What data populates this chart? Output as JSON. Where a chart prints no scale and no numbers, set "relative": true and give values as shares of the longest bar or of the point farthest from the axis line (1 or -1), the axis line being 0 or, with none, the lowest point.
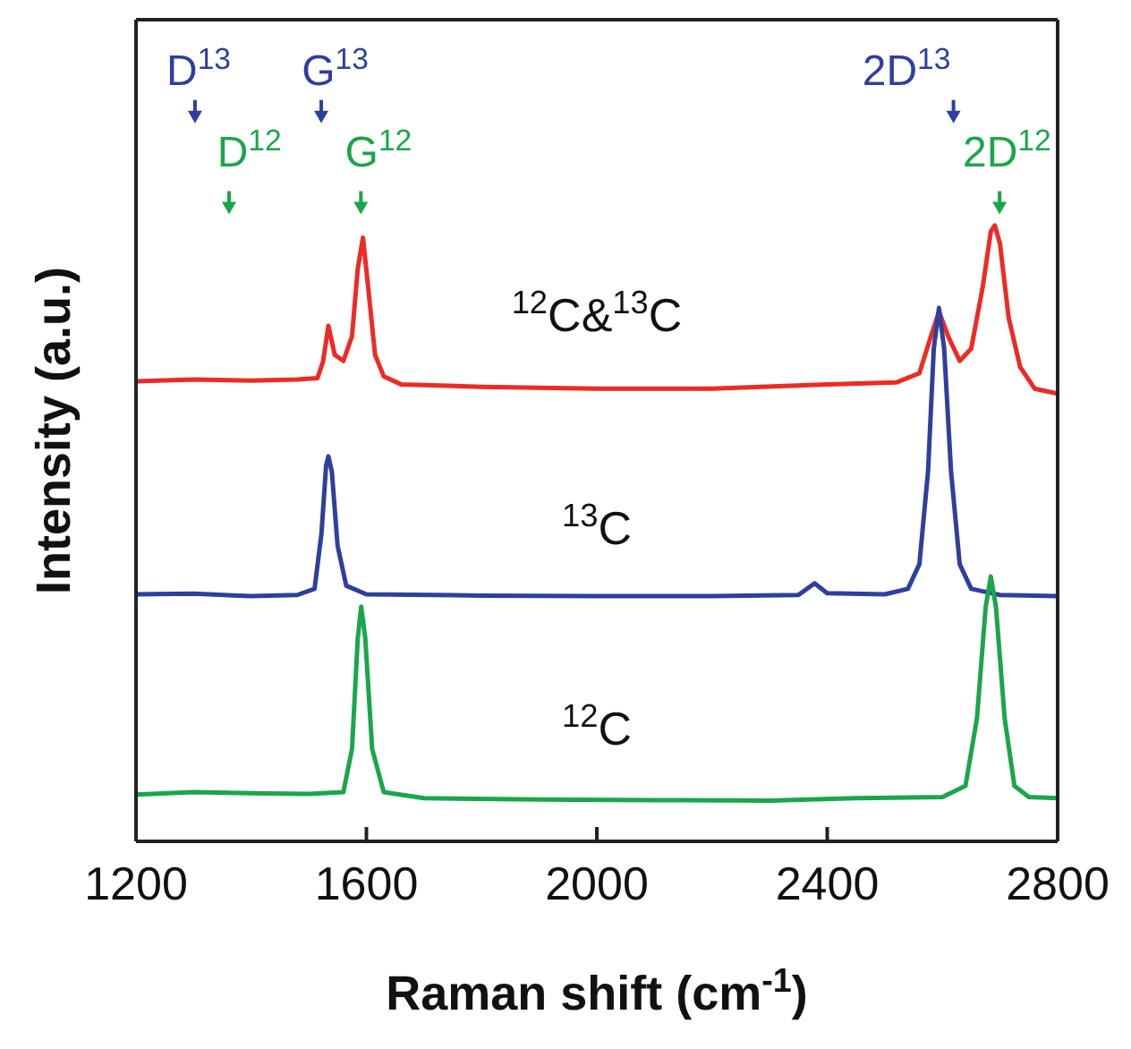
{
  "chart_data": {
    "type": "line",
    "relative": true,
    "xlabel": "Raman shift (cm$^{-1}$)",
    "ylabel": "Intensity (a.u.)",
    "xlim": [
      1200,
      2800
    ],
    "xticks": [
      1200,
      1600,
      2000,
      2400,
      2800
    ],
    "series": [
      {
        "name": "$^{12}$C&$^{13}$C",
        "color": "#ee2a24",
        "x": [
          1200,
          1300,
          1400,
          1480,
          1515,
          1525,
          1534,
          1545,
          1560,
          1575,
          1585,
          1594,
          1603,
          1615,
          1630,
          1660,
          1800,
          2000,
          2200,
          2400,
          2520,
          2560,
          2580,
          2594,
          2610,
          2630,
          2650,
          2670,
          2684,
          2691,
          2700,
          2715,
          2735,
          2760,
          2800
        ],
        "values": [
          0.747,
          0.75,
          0.748,
          0.75,
          0.752,
          0.78,
          0.837,
          0.79,
          0.78,
          0.82,
          0.93,
          0.98,
          0.9,
          0.79,
          0.755,
          0.742,
          0.738,
          0.735,
          0.735,
          0.742,
          0.745,
          0.76,
          0.82,
          0.86,
          0.82,
          0.78,
          0.8,
          0.9,
          0.99,
          1.0,
          0.97,
          0.85,
          0.77,
          0.735,
          0.727
        ]
      },
      {
        "name": "$^{13}$C",
        "color": "#2e3f9e",
        "x": [
          1200,
          1300,
          1400,
          1480,
          1510,
          1522,
          1530,
          1534,
          1540,
          1550,
          1565,
          1600,
          1800,
          2000,
          2200,
          2350,
          2378,
          2400,
          2500,
          2540,
          2560,
          2575,
          2585,
          2594,
          2603,
          2615,
          2630,
          2650,
          2700,
          2800
        ],
        "values": [
          0.401,
          0.402,
          0.398,
          0.4,
          0.41,
          0.5,
          0.61,
          0.625,
          0.6,
          0.48,
          0.415,
          0.401,
          0.399,
          0.398,
          0.398,
          0.4,
          0.419,
          0.403,
          0.401,
          0.41,
          0.45,
          0.6,
          0.8,
          0.866,
          0.8,
          0.6,
          0.45,
          0.41,
          0.4,
          0.398
        ]
      },
      {
        "name": "$^{12}$C",
        "color": "#1aa64a",
        "x": [
          1200,
          1300,
          1400,
          1500,
          1560,
          1575,
          1585,
          1591,
          1598,
          1610,
          1630,
          1700,
          1900,
          2100,
          2300,
          2450,
          2600,
          2640,
          2660,
          2675,
          2684,
          2693,
          2708,
          2725,
          2750,
          2800
        ],
        "values": [
          0.076,
          0.08,
          0.078,
          0.077,
          0.08,
          0.15,
          0.33,
          0.381,
          0.33,
          0.15,
          0.08,
          0.07,
          0.068,
          0.067,
          0.066,
          0.07,
          0.072,
          0.09,
          0.2,
          0.38,
          0.43,
          0.38,
          0.2,
          0.09,
          0.072,
          0.07
        ]
      }
    ],
    "annotations": [
      "D$^{13}$",
      "G$^{13}$",
      "2D$^{13}$",
      "D$^{12}$",
      "G$^{12}$",
      "2D$^{12}$"
    ]
  }
}
